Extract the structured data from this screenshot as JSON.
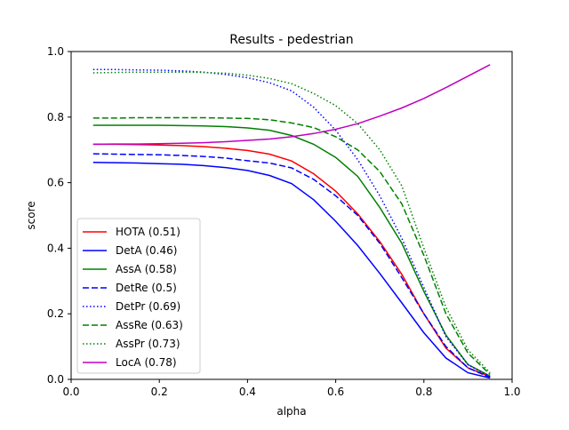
{
  "chart_data": {
    "type": "line",
    "title": "Results - pedestrian",
    "xlabel": "alpha",
    "ylabel": "score",
    "xlim": [
      0.0,
      1.0
    ],
    "ylim": [
      0.0,
      1.0
    ],
    "xticks": [
      "0.0",
      "0.2",
      "0.4",
      "0.6",
      "0.8",
      "1.0"
    ],
    "yticks": [
      "0.0",
      "0.2",
      "0.4",
      "0.6",
      "0.8",
      "1.0"
    ],
    "grid": false,
    "legend_position": "lower-left",
    "x": [
      0.05,
      0.1,
      0.15,
      0.2,
      0.25,
      0.3,
      0.35,
      0.4,
      0.45,
      0.5,
      0.55,
      0.6,
      0.65,
      0.7,
      0.75,
      0.8,
      0.85,
      0.9,
      0.95
    ],
    "series": [
      {
        "name": "HOTA (0.51)",
        "color": "#ff0000",
        "dash": "solid",
        "values": [
          0.717,
          0.717,
          0.716,
          0.715,
          0.713,
          0.71,
          0.705,
          0.698,
          0.687,
          0.666,
          0.627,
          0.574,
          0.505,
          0.42,
          0.32,
          0.2,
          0.095,
          0.035,
          0.008
        ]
      },
      {
        "name": "DetA (0.46)",
        "color": "#0000ff",
        "dash": "solid",
        "values": [
          0.662,
          0.661,
          0.66,
          0.658,
          0.656,
          0.652,
          0.646,
          0.637,
          0.622,
          0.597,
          0.548,
          0.482,
          0.408,
          0.323,
          0.233,
          0.142,
          0.065,
          0.02,
          0.004
        ]
      },
      {
        "name": "AssA (0.58)",
        "color": "#008000",
        "dash": "solid",
        "values": [
          0.775,
          0.775,
          0.775,
          0.775,
          0.774,
          0.773,
          0.771,
          0.767,
          0.76,
          0.744,
          0.717,
          0.677,
          0.619,
          0.524,
          0.415,
          0.268,
          0.135,
          0.045,
          0.01
        ]
      },
      {
        "name": "DetRe (0.5)",
        "color": "#0000ff",
        "dash": "dashed",
        "values": [
          0.688,
          0.687,
          0.686,
          0.685,
          0.683,
          0.68,
          0.675,
          0.667,
          0.66,
          0.645,
          0.61,
          0.56,
          0.5,
          0.415,
          0.31,
          0.2,
          0.1,
          0.035,
          0.006
        ]
      },
      {
        "name": "DetPr (0.69)",
        "color": "#0000ff",
        "dash": "dotted",
        "values": [
          0.945,
          0.945,
          0.944,
          0.943,
          0.941,
          0.937,
          0.93,
          0.92,
          0.905,
          0.88,
          0.83,
          0.76,
          0.67,
          0.56,
          0.43,
          0.28,
          0.13,
          0.045,
          0.008
        ]
      },
      {
        "name": "AssRe (0.63)",
        "color": "#008000",
        "dash": "dashed",
        "values": [
          0.797,
          0.797,
          0.798,
          0.798,
          0.798,
          0.798,
          0.797,
          0.796,
          0.792,
          0.782,
          0.768,
          0.74,
          0.7,
          0.634,
          0.535,
          0.378,
          0.2,
          0.08,
          0.015
        ]
      },
      {
        "name": "AssPr (0.73)",
        "color": "#008000",
        "dash": "dotted",
        "values": [
          0.935,
          0.936,
          0.937,
          0.937,
          0.937,
          0.936,
          0.934,
          0.928,
          0.918,
          0.902,
          0.872,
          0.835,
          0.78,
          0.7,
          0.59,
          0.4,
          0.22,
          0.09,
          0.02
        ]
      },
      {
        "name": "LocA (0.78)",
        "color": "#bf00bf",
        "dash": "solid",
        "values": [
          0.717,
          0.718,
          0.718,
          0.719,
          0.72,
          0.722,
          0.725,
          0.729,
          0.733,
          0.74,
          0.75,
          0.763,
          0.78,
          0.803,
          0.828,
          0.857,
          0.89,
          0.925,
          0.96
        ]
      }
    ]
  }
}
